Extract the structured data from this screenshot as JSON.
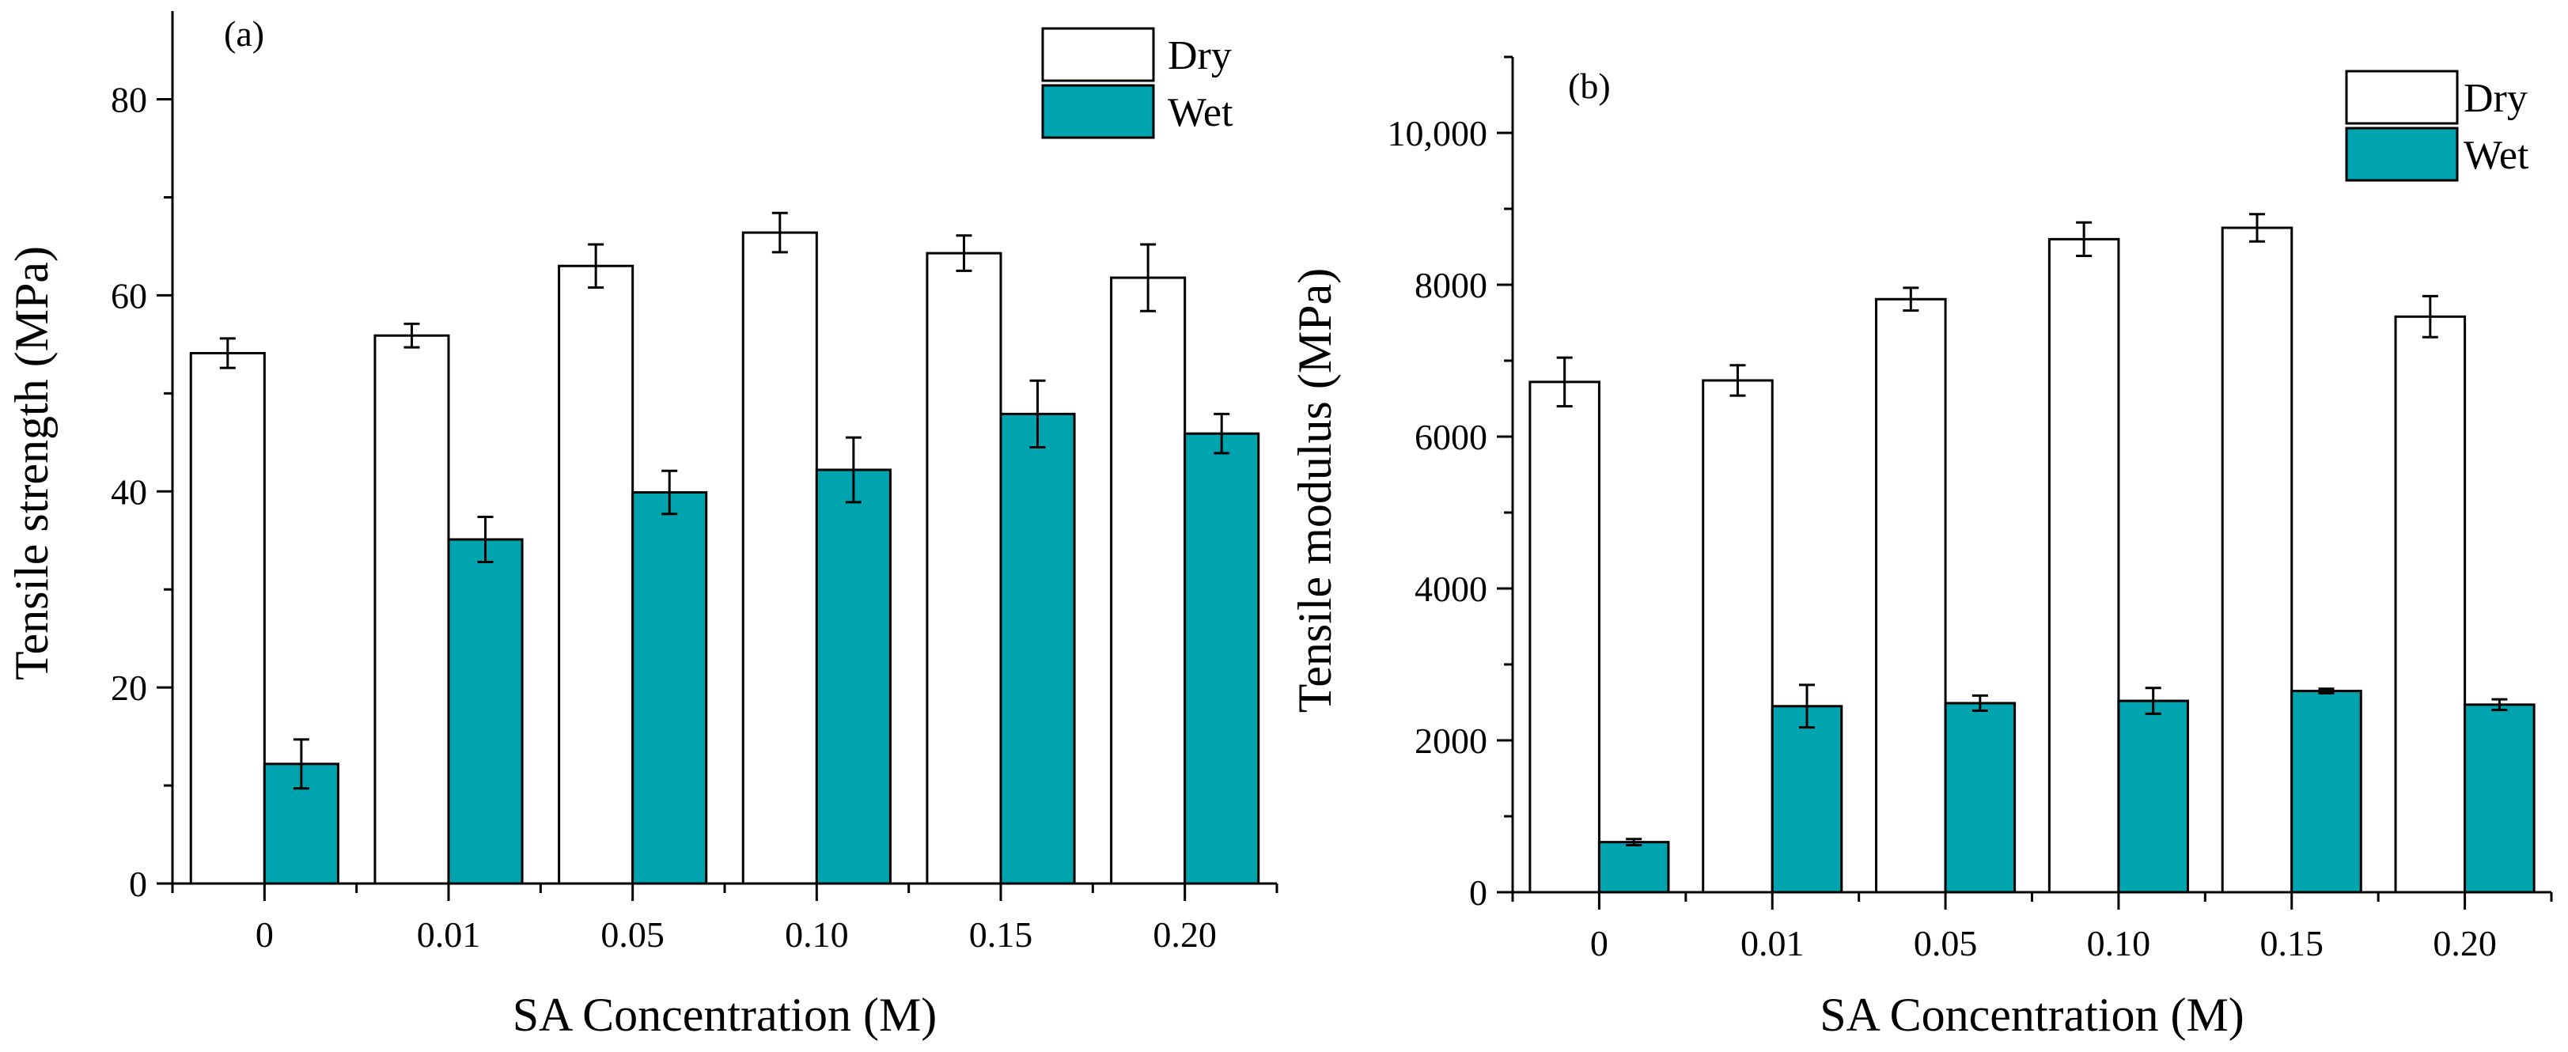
{
  "chart_data": [
    {
      "type": "bar",
      "panel_label": "(a)",
      "categories": [
        "0",
        "0.01",
        "0.05",
        "0.10",
        "0.15",
        "0.20"
      ],
      "series": [
        {
          "name": "Dry",
          "color": "#ffffff",
          "values": [
            54.1,
            55.9,
            63.0,
            66.4,
            64.3,
            61.8
          ],
          "errors": [
            1.5,
            1.2,
            2.2,
            2.0,
            1.8,
            3.4
          ]
        },
        {
          "name": "Wet",
          "color": "#00a4ae",
          "values": [
            12.2,
            35.1,
            39.9,
            42.2,
            47.9,
            45.9
          ],
          "errors": [
            2.5,
            2.3,
            2.2,
            3.3,
            3.4,
            2.0
          ]
        }
      ],
      "xlabel": "SA Concentration (M)",
      "ylabel": "Tensile strength (MPa)",
      "ylim": [
        0,
        89
      ],
      "yticks": [
        0,
        20,
        40,
        60,
        80
      ],
      "ytick_labels": [
        "0",
        "20",
        "40",
        "60",
        "80"
      ],
      "legend_position": "top-right",
      "grid": false
    },
    {
      "type": "bar",
      "panel_label": "(b)",
      "categories": [
        "0",
        "0.01",
        "0.05",
        "0.10",
        "0.15",
        "0.20"
      ],
      "series": [
        {
          "name": "Dry",
          "color": "#ffffff",
          "values": [
            6720,
            6740,
            7810,
            8600,
            8750,
            7580
          ],
          "errors": [
            320,
            200,
            150,
            220,
            180,
            270
          ]
        },
        {
          "name": "Wet",
          "color": "#00a4ae",
          "values": [
            660,
            2450,
            2490,
            2520,
            2650,
            2470
          ],
          "errors": [
            40,
            280,
            100,
            170,
            30,
            70
          ]
        }
      ],
      "xlabel": "SA Concentration (M)",
      "ylabel": "Tensile modulus (MPa)",
      "ylim": [
        0,
        11000
      ],
      "yticks": [
        0,
        2000,
        4000,
        6000,
        8000,
        10000
      ],
      "ytick_labels": [
        "0",
        "2000",
        "4000",
        "6000",
        "8000",
        "10,000"
      ],
      "legend_position": "top-right",
      "grid": false
    }
  ]
}
